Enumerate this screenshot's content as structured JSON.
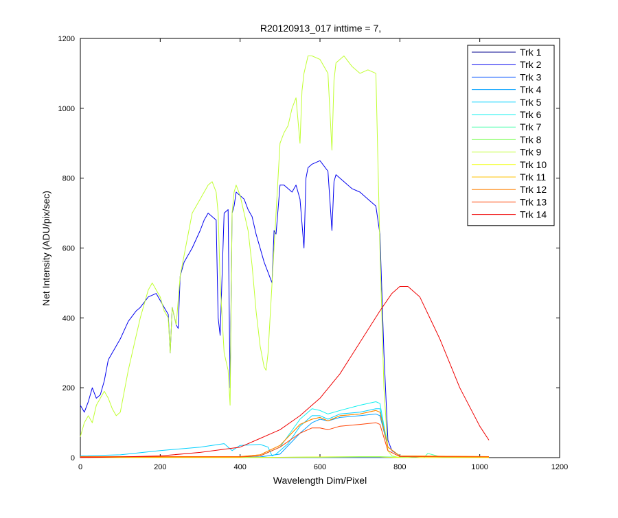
{
  "chart_data": {
    "type": "line",
    "title": "R20120913_017 inttime = 7,",
    "xlabel": "Wavelength Dim/Pixel",
    "ylabel": "Net Intensity (ADU/pix/sec)",
    "xlim": [
      0,
      1200
    ],
    "ylim": [
      0,
      1200
    ],
    "xticks": [
      0,
      200,
      400,
      600,
      800,
      1000,
      1200
    ],
    "yticks": [
      0,
      200,
      400,
      600,
      800,
      1000,
      1200
    ],
    "grid": false,
    "legend_position": "top-right",
    "series": [
      {
        "name": "Trk 1",
        "color": "#00008f",
        "x": [
          0,
          1023
        ],
        "y": [
          0,
          0
        ]
      },
      {
        "name": "Trk 2",
        "color": "#0000ef",
        "x": [
          0,
          10,
          20,
          30,
          40,
          50,
          60,
          70,
          80,
          100,
          120,
          140,
          150,
          170,
          190,
          200,
          210,
          220,
          225,
          230,
          240,
          245,
          250,
          260,
          280,
          300,
          310,
          320,
          330,
          340,
          345,
          350,
          360,
          370,
          375,
          380,
          385,
          390,
          400,
          410,
          420,
          430,
          440,
          450,
          460,
          470,
          480,
          485,
          490,
          500,
          510,
          520,
          530,
          540,
          550,
          560,
          565,
          570,
          580,
          600,
          620,
          630,
          635,
          640,
          660,
          680,
          700,
          720,
          740,
          750,
          760,
          770,
          780,
          800,
          850,
          900,
          1023
        ],
        "y": [
          150,
          130,
          160,
          200,
          170,
          180,
          220,
          280,
          300,
          340,
          390,
          420,
          430,
          460,
          470,
          450,
          430,
          410,
          300,
          430,
          380,
          370,
          520,
          560,
          600,
          650,
          680,
          700,
          690,
          680,
          400,
          350,
          700,
          710,
          200,
          700,
          720,
          760,
          750,
          740,
          710,
          690,
          640,
          600,
          560,
          530,
          500,
          650,
          640,
          780,
          780,
          770,
          760,
          780,
          740,
          600,
          800,
          830,
          840,
          850,
          820,
          650,
          790,
          810,
          790,
          770,
          760,
          740,
          720,
          640,
          300,
          50,
          20,
          5,
          0,
          0,
          0
        ]
      },
      {
        "name": "Trk 3",
        "color": "#0050ff",
        "x": [
          0,
          1023
        ],
        "y": [
          0,
          0
        ]
      },
      {
        "name": "Trk 4",
        "color": "#00a0ff",
        "x": [
          0,
          350,
          400,
          450,
          500,
          550,
          580,
          600,
          620,
          650,
          700,
          740,
          750,
          770,
          800,
          1023
        ],
        "y": [
          0,
          0,
          0,
          2,
          10,
          70,
          100,
          110,
          105,
          115,
          120,
          125,
          120,
          30,
          5,
          0
        ]
      },
      {
        "name": "Trk 5",
        "color": "#00d0ff",
        "x": [
          0,
          100,
          200,
          300,
          360,
          380,
          400,
          450,
          470,
          480,
          490,
          520,
          550,
          580,
          600,
          620,
          650,
          700,
          740,
          750,
          770,
          800,
          1023
        ],
        "y": [
          5,
          8,
          20,
          30,
          40,
          20,
          35,
          38,
          30,
          5,
          10,
          40,
          90,
          120,
          120,
          110,
          125,
          130,
          140,
          140,
          30,
          5,
          0
        ]
      },
      {
        "name": "Trk 6",
        "color": "#10f0ef",
        "x": [
          0,
          350,
          400,
          450,
          500,
          550,
          580,
          600,
          620,
          650,
          700,
          740,
          750,
          770,
          800,
          1023
        ],
        "y": [
          0,
          0,
          1,
          5,
          30,
          110,
          140,
          135,
          125,
          135,
          150,
          160,
          155,
          30,
          5,
          0
        ]
      },
      {
        "name": "Trk 7",
        "color": "#50ffaf",
        "x": [
          0,
          400,
          500,
          600,
          700,
          750,
          800,
          860,
          870,
          900,
          1023
        ],
        "y": [
          0,
          0,
          1,
          2,
          3,
          3,
          1,
          0,
          12,
          3,
          0
        ]
      },
      {
        "name": "Trk 8",
        "color": "#90ff70",
        "x": [
          0,
          400,
          500,
          600,
          700,
          750,
          800,
          1023
        ],
        "y": [
          0,
          0,
          1,
          1,
          2,
          2,
          0,
          0
        ]
      },
      {
        "name": "Trk 9",
        "color": "#c0ff30",
        "x": [
          0,
          10,
          20,
          30,
          40,
          50,
          60,
          70,
          80,
          90,
          100,
          120,
          140,
          150,
          160,
          170,
          180,
          190,
          200,
          210,
          220,
          225,
          230,
          240,
          250,
          260,
          280,
          300,
          320,
          330,
          340,
          345,
          350,
          360,
          370,
          375,
          380,
          385,
          390,
          400,
          410,
          420,
          430,
          440,
          450,
          460,
          465,
          470,
          480,
          490,
          500,
          510,
          520,
          530,
          540,
          550,
          555,
          560,
          570,
          580,
          600,
          620,
          630,
          635,
          640,
          660,
          680,
          700,
          720,
          740,
          750,
          760,
          770,
          780,
          800,
          850,
          900,
          1023
        ],
        "y": [
          60,
          100,
          120,
          100,
          150,
          170,
          190,
          170,
          140,
          120,
          130,
          250,
          350,
          400,
          440,
          480,
          500,
          480,
          460,
          420,
          400,
          300,
          430,
          380,
          520,
          580,
          700,
          740,
          780,
          790,
          760,
          700,
          500,
          300,
          250,
          150,
          700,
          760,
          780,
          750,
          700,
          650,
          550,
          420,
          320,
          260,
          250,
          300,
          500,
          700,
          900,
          930,
          950,
          1000,
          1030,
          900,
          1050,
          1100,
          1150,
          1150,
          1140,
          1100,
          880,
          1080,
          1130,
          1150,
          1120,
          1100,
          1110,
          1100,
          600,
          200,
          20,
          5,
          0,
          0,
          0,
          0
        ]
      },
      {
        "name": "Trk 10",
        "color": "#f0ff00",
        "x": [
          0,
          400,
          500,
          600,
          700,
          750,
          800,
          1023
        ],
        "y": [
          0,
          0,
          1,
          2,
          2,
          2,
          0,
          0
        ]
      },
      {
        "name": "Trk 11",
        "color": "#ffc000",
        "x": [
          0,
          350,
          400,
          450,
          500,
          550,
          580,
          600,
          620,
          650,
          700,
          740,
          750,
          770,
          800,
          1023
        ],
        "y": [
          3,
          3,
          3,
          8,
          35,
          95,
          110,
          115,
          105,
          120,
          125,
          135,
          130,
          30,
          5,
          3
        ]
      },
      {
        "name": "Trk 12",
        "color": "#ff8000",
        "x": [
          0,
          350,
          400,
          450,
          500,
          550,
          580,
          600,
          620,
          650,
          700,
          740,
          750,
          770,
          800,
          1023
        ],
        "y": [
          3,
          3,
          3,
          8,
          35,
          95,
          110,
          115,
          105,
          120,
          125,
          135,
          130,
          30,
          5,
          3
        ]
      },
      {
        "name": "Trk 13",
        "color": "#ff4000",
        "x": [
          0,
          350,
          400,
          450,
          500,
          550,
          580,
          600,
          620,
          650,
          700,
          740,
          750,
          770,
          800,
          1023
        ],
        "y": [
          2,
          2,
          2,
          5,
          30,
          70,
          85,
          85,
          80,
          90,
          95,
          100,
          95,
          20,
          3,
          2
        ]
      },
      {
        "name": "Trk 14",
        "color": "#ef0000",
        "x": [
          0,
          100,
          200,
          300,
          400,
          450,
          500,
          550,
          600,
          650,
          700,
          750,
          780,
          800,
          820,
          850,
          900,
          950,
          1000,
          1023
        ],
        "y": [
          0,
          2,
          5,
          15,
          30,
          55,
          80,
          120,
          170,
          240,
          330,
          420,
          470,
          490,
          490,
          460,
          340,
          200,
          90,
          50
        ]
      }
    ]
  }
}
